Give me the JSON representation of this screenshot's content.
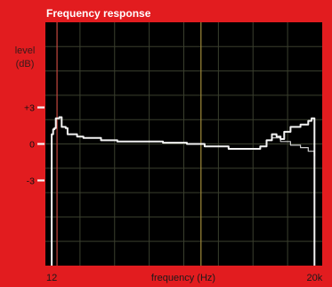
{
  "chart_data": {
    "type": "line",
    "title": "Frequency response",
    "ylabel_line1": "level",
    "ylabel_line2": "(dB)",
    "xlabel": "frequency (Hz)",
    "x_tick_labels": [
      "12",
      "20k"
    ],
    "y_tick_labels": [
      "+3",
      "0",
      "-3"
    ],
    "y_ticks": [
      3,
      0,
      -3
    ],
    "xscale": "log",
    "xlim": [
      10,
      30000
    ],
    "ylim": [
      -10,
      10
    ],
    "grid": true,
    "vlines": [
      {
        "x": 14,
        "color": "#c4483e"
      },
      {
        "x": 900,
        "color": "#a08a3a"
      }
    ],
    "colors": {
      "background": "#e21c1f",
      "panel": "#000000",
      "grid": "#3a3f2e",
      "line": "#ffffff"
    },
    "series": [
      {
        "values": [
          [
            12,
            -10
          ],
          [
            12,
            0.8
          ],
          [
            12.5,
            1.2
          ],
          [
            13,
            1.3
          ],
          [
            13.5,
            2.1
          ],
          [
            15,
            2.2
          ],
          [
            16,
            1.4
          ],
          [
            18,
            1.3
          ],
          [
            19,
            0.8
          ],
          [
            25,
            0.6
          ],
          [
            30,
            0.5
          ],
          [
            50,
            0.3
          ],
          [
            80,
            0.2
          ],
          [
            150,
            0.2
          ],
          [
            300,
            0.1
          ],
          [
            600,
            0
          ],
          [
            1000,
            -0.2
          ],
          [
            2000,
            -0.4
          ],
          [
            3500,
            -0.4
          ],
          [
            5000,
            -0.2
          ],
          [
            6000,
            0.3
          ],
          [
            7000,
            0.8
          ],
          [
            8000,
            0.6
          ],
          [
            9000,
            0.4
          ],
          [
            10000,
            1.0
          ],
          [
            12000,
            1.4
          ],
          [
            16000,
            1.6
          ],
          [
            20000,
            1.9
          ],
          [
            22000,
            2.1
          ],
          [
            24000,
            1.1
          ],
          [
            24000,
            -10
          ]
        ]
      },
      {
        "values": [
          [
            6000,
            0.3
          ],
          [
            7000,
            0.5
          ],
          [
            9000,
            0.2
          ],
          [
            12000,
            -0.1
          ],
          [
            16000,
            -0.3
          ],
          [
            20000,
            -0.6
          ],
          [
            24000,
            -1.0
          ]
        ]
      }
    ]
  }
}
